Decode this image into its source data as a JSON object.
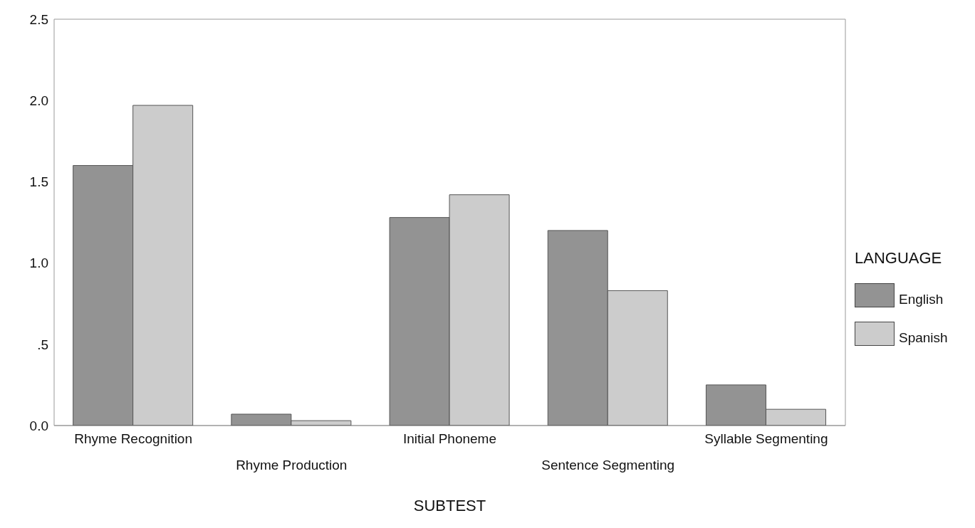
{
  "chart_data": {
    "type": "bar",
    "xlabel": "SUBTEST",
    "legend_title": "LANGUAGE",
    "legend": "right",
    "categories": [
      "Rhyme Recognition",
      "Rhyme Production",
      "Initial Phoneme",
      "Sentence Segmenting",
      "Syllable Segmenting"
    ],
    "series": [
      {
        "name": "English",
        "color": "#939393",
        "values": [
          1.6,
          0.07,
          1.28,
          1.2,
          0.25
        ]
      },
      {
        "name": "Spanish",
        "color": "#cccccc",
        "values": [
          1.97,
          0.03,
          1.42,
          0.83,
          0.1
        ]
      }
    ],
    "ylim": [
      0,
      2.5
    ],
    "yticks": [
      {
        "value": 0,
        "label": "0.0"
      },
      {
        "value": 0.5,
        "label": ".5"
      },
      {
        "value": 1,
        "label": "1.0"
      },
      {
        "value": 1.5,
        "label": "1.5"
      },
      {
        "value": 2,
        "label": "2.0"
      },
      {
        "value": 2.5,
        "label": "2.5"
      }
    ]
  }
}
